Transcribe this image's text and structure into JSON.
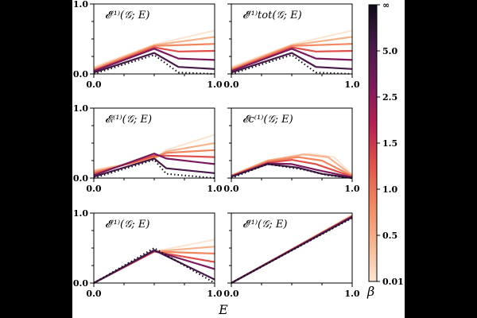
{
  "figure": {
    "xlabel": "E",
    "colorbar": {
      "label": "β",
      "ticks": [
        "0.01",
        "0.5",
        "1.0",
        "1.5",
        "2.5",
        "5.0",
        "∞"
      ],
      "colors": [
        "#fbe6d4",
        "#f6b48e",
        "#f1865f",
        "#e0504a",
        "#b61f53",
        "#7b1a5b",
        "#451a48",
        "#0f0a16"
      ]
    }
  },
  "chart_data": [
    {
      "type": "line",
      "panel": "top-left",
      "title": "𝓔⁽¹⁾(𝒢; E)",
      "x": [
        0,
        0.5,
        1.0
      ],
      "xlim": [
        0,
        1.0
      ],
      "ylim": [
        0,
        1.0
      ],
      "xticks": [
        "0.0",
        "1.0"
      ],
      "yticks": [
        "0.0",
        "1.0"
      ],
      "series": [
        {
          "beta": "0.01",
          "x": [
            0,
            0.5,
            1.0
          ],
          "y": [
            0.1,
            0.42,
            0.62
          ]
        },
        {
          "beta": "0.5",
          "x": [
            0,
            0.5,
            1.0
          ],
          "y": [
            0.08,
            0.41,
            0.53
          ]
        },
        {
          "beta": "1.0",
          "x": [
            0,
            0.5,
            1.0
          ],
          "y": [
            0.06,
            0.4,
            0.43
          ]
        },
        {
          "beta": "1.5",
          "x": [
            0,
            0.5,
            0.7,
            1.0
          ],
          "y": [
            0.05,
            0.38,
            0.32,
            0.33
          ]
        },
        {
          "beta": "2.5",
          "x": [
            0,
            0.5,
            0.7,
            1.0
          ],
          "y": [
            0.04,
            0.36,
            0.22,
            0.2
          ]
        },
        {
          "beta": "5.0",
          "x": [
            0,
            0.5,
            0.7,
            1.0
          ],
          "y": [
            0.02,
            0.3,
            0.1,
            0.07
          ]
        },
        {
          "beta": "∞",
          "x": [
            0,
            0.5,
            0.7,
            1.0
          ],
          "y": [
            0.0,
            0.27,
            0.02,
            0.0
          ],
          "style": "dotted"
        }
      ]
    },
    {
      "type": "line",
      "panel": "top-right",
      "title": "𝓔⁽¹⁾tot(𝒢; E)",
      "x": [
        0,
        0.5,
        1.0
      ],
      "xlim": [
        0,
        1.0
      ],
      "ylim": [
        0,
        1.0
      ],
      "xticks": [
        "0.0",
        "1.0"
      ],
      "yticks": [],
      "series": [
        {
          "beta": "0.01",
          "x": [
            0,
            0.5,
            1.0
          ],
          "y": [
            0.1,
            0.42,
            0.62
          ]
        },
        {
          "beta": "0.5",
          "x": [
            0,
            0.5,
            1.0
          ],
          "y": [
            0.08,
            0.41,
            0.53
          ]
        },
        {
          "beta": "1.0",
          "x": [
            0,
            0.5,
            1.0
          ],
          "y": [
            0.06,
            0.4,
            0.43
          ]
        },
        {
          "beta": "1.5",
          "x": [
            0,
            0.5,
            0.7,
            1.0
          ],
          "y": [
            0.05,
            0.38,
            0.32,
            0.33
          ]
        },
        {
          "beta": "2.5",
          "x": [
            0,
            0.5,
            0.7,
            1.0
          ],
          "y": [
            0.04,
            0.36,
            0.22,
            0.2
          ]
        },
        {
          "beta": "5.0",
          "x": [
            0,
            0.5,
            0.7,
            1.0
          ],
          "y": [
            0.02,
            0.3,
            0.1,
            0.07
          ]
        },
        {
          "beta": "∞",
          "x": [
            0,
            0.5,
            0.7,
            1.0
          ],
          "y": [
            0.0,
            0.27,
            0.02,
            0.0
          ],
          "style": "dotted"
        }
      ]
    },
    {
      "type": "line",
      "panel": "middle-left",
      "title": "𝓔ᵢ⁽¹⁾(𝒢; E)",
      "x": [
        0,
        0.5,
        1.0
      ],
      "xlim": [
        0,
        1.0
      ],
      "ylim": [
        0,
        1.0
      ],
      "xticks": [
        "0.0",
        "1.0"
      ],
      "yticks": [
        "0.0",
        "1.0"
      ],
      "series": [
        {
          "beta": "0.01",
          "x": [
            0,
            0.5,
            0.6,
            1.0
          ],
          "y": [
            0.12,
            0.27,
            0.4,
            0.62
          ]
        },
        {
          "beta": "0.5",
          "x": [
            0,
            0.5,
            0.6,
            1.0
          ],
          "y": [
            0.1,
            0.28,
            0.38,
            0.5
          ]
        },
        {
          "beta": "1.0",
          "x": [
            0,
            0.5,
            0.6,
            1.0
          ],
          "y": [
            0.08,
            0.3,
            0.36,
            0.4
          ]
        },
        {
          "beta": "1.5",
          "x": [
            0,
            0.5,
            0.6,
            1.0
          ],
          "y": [
            0.06,
            0.32,
            0.32,
            0.3
          ]
        },
        {
          "beta": "2.5",
          "x": [
            0,
            0.5,
            0.6,
            1.0
          ],
          "y": [
            0.04,
            0.35,
            0.28,
            0.2
          ]
        },
        {
          "beta": "5.0",
          "x": [
            0,
            0.5,
            0.6,
            1.0
          ],
          "y": [
            0.02,
            0.28,
            0.14,
            0.07
          ]
        },
        {
          "beta": "∞",
          "x": [
            0,
            0.5,
            0.6,
            1.0
          ],
          "y": [
            0.0,
            0.26,
            0.06,
            0.0
          ],
          "style": "dotted"
        }
      ]
    },
    {
      "type": "line",
      "panel": "middle-right",
      "title": "𝓔c⁽¹⁾(𝒢; E)",
      "x": [
        0,
        0.3,
        1.0
      ],
      "xlim": [
        0,
        1.0
      ],
      "ylim": [
        0,
        1.0
      ],
      "xticks": [
        "0.0",
        "1.0"
      ],
      "yticks": [],
      "series": [
        {
          "beta": "0.01",
          "x": [
            0,
            0.3,
            0.65,
            0.85,
            1.0
          ],
          "y": [
            0.04,
            0.25,
            0.35,
            0.3,
            0.05
          ]
        },
        {
          "beta": "0.5",
          "x": [
            0,
            0.3,
            0.6,
            0.8,
            1.0
          ],
          "y": [
            0.04,
            0.25,
            0.34,
            0.3,
            0.04
          ]
        },
        {
          "beta": "1.0",
          "x": [
            0,
            0.3,
            0.55,
            0.75,
            1.0
          ],
          "y": [
            0.03,
            0.24,
            0.3,
            0.25,
            0.03
          ]
        },
        {
          "beta": "1.5",
          "x": [
            0,
            0.3,
            0.5,
            0.7,
            1.0
          ],
          "y": [
            0.03,
            0.22,
            0.26,
            0.2,
            0.02
          ]
        },
        {
          "beta": "2.5",
          "x": [
            0,
            0.3,
            0.5,
            0.7,
            1.0
          ],
          "y": [
            0.02,
            0.21,
            0.2,
            0.12,
            0.01
          ]
        },
        {
          "beta": "5.0",
          "x": [
            0,
            0.3,
            0.55,
            0.75,
            1.0
          ],
          "y": [
            0.02,
            0.2,
            0.15,
            0.06,
            0.0
          ]
        },
        {
          "beta": "∞",
          "x": [
            0,
            0.3,
            0.6,
            0.8,
            1.0
          ],
          "y": [
            0.0,
            0.2,
            0.12,
            0.04,
            0.0
          ],
          "style": "dotted"
        }
      ]
    },
    {
      "type": "line",
      "panel": "bottom-left",
      "title": "𝓔⁽¹⁾(𝒢; E)",
      "x": [
        0,
        0.5,
        1.0
      ],
      "xlim": [
        0,
        1.0
      ],
      "ylim": [
        0,
        1.0
      ],
      "xticks": [
        "0.0",
        "1.0"
      ],
      "yticks": [
        "0.0",
        "1.0"
      ],
      "series": [
        {
          "beta": "0.01",
          "x": [
            0,
            0.5,
            1.0
          ],
          "y": [
            0.0,
            0.45,
            0.62
          ]
        },
        {
          "beta": "0.5",
          "x": [
            0,
            0.5,
            1.0
          ],
          "y": [
            0.0,
            0.45,
            0.52
          ]
        },
        {
          "beta": "1.0",
          "x": [
            0,
            0.5,
            1.0
          ],
          "y": [
            0.0,
            0.45,
            0.42
          ]
        },
        {
          "beta": "1.5",
          "x": [
            0,
            0.5,
            1.0
          ],
          "y": [
            0.0,
            0.45,
            0.3
          ]
        },
        {
          "beta": "2.5",
          "x": [
            0,
            0.5,
            1.0
          ],
          "y": [
            0.0,
            0.46,
            0.2
          ]
        },
        {
          "beta": "5.0",
          "x": [
            0,
            0.5,
            1.0
          ],
          "y": [
            0.0,
            0.47,
            0.05
          ]
        },
        {
          "beta": "∞",
          "x": [
            0,
            0.5,
            1.0
          ],
          "y": [
            0.0,
            0.5,
            0.0
          ],
          "style": "dotted"
        }
      ]
    },
    {
      "type": "line",
      "panel": "bottom-right",
      "title": "𝓔⁽¹⁾(𝒢; E)",
      "x": [
        0,
        1.0
      ],
      "xlim": [
        0,
        1.0
      ],
      "ylim": [
        0,
        1.0
      ],
      "xticks": [
        "0.0",
        "1.0"
      ],
      "yticks": [],
      "series": [
        {
          "beta": "0.01",
          "x": [
            0,
            1.0
          ],
          "y": [
            0.0,
            0.97
          ]
        },
        {
          "beta": "0.5",
          "x": [
            0,
            1.0
          ],
          "y": [
            0.0,
            0.965
          ]
        },
        {
          "beta": "1.0",
          "x": [
            0,
            1.0
          ],
          "y": [
            0.0,
            0.96
          ]
        },
        {
          "beta": "1.5",
          "x": [
            0,
            1.0
          ],
          "y": [
            0.0,
            0.955
          ]
        },
        {
          "beta": "2.5",
          "x": [
            0,
            1.0
          ],
          "y": [
            0.0,
            0.95
          ]
        },
        {
          "beta": "5.0",
          "x": [
            0,
            1.0
          ],
          "y": [
            0.0,
            0.94
          ]
        },
        {
          "beta": "∞",
          "x": [
            0,
            1.0
          ],
          "y": [
            0.0,
            0.93
          ],
          "style": "dotted"
        }
      ]
    }
  ]
}
